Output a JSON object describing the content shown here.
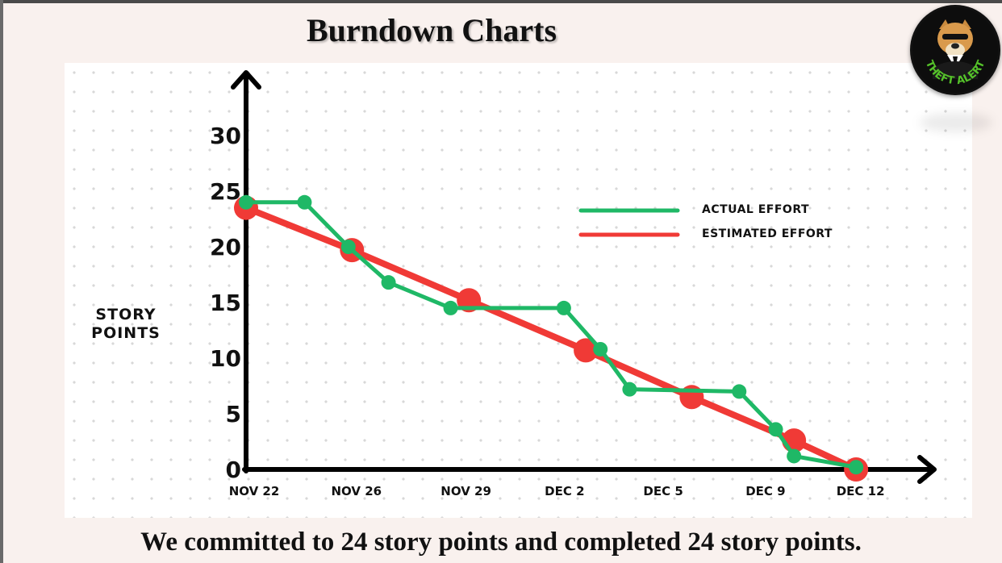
{
  "header": {
    "title": "Burndown Charts"
  },
  "footer": {
    "caption": "We committed to 24 story points and completed 24 story points."
  },
  "logo": {
    "text": "THEFT ALERT",
    "icon": "bulldog-icon"
  },
  "colors": {
    "actual": "#1fb866",
    "estimated": "#f03a36",
    "axis": "#000000"
  },
  "chart_data": {
    "type": "line",
    "title": "Burndown Charts",
    "xlabel": "",
    "ylabel": "STORY POINTS",
    "ylabel_lines": [
      "STORY",
      "POINTS"
    ],
    "ylim": [
      0,
      30
    ],
    "yticks": [
      0,
      5,
      10,
      15,
      20,
      25,
      30
    ],
    "x_ticks": [
      "NOV 22",
      "NOV 26",
      "NOV 29",
      "DEC 2",
      "DEC 5",
      "DEC 9",
      "DEC 12"
    ],
    "x_range": [
      0,
      18
    ],
    "x_tick_positions": [
      0,
      2.8,
      5.8,
      8.5,
      11.2,
      14,
      16.6
    ],
    "grid": false,
    "legend_position": "top-right",
    "series": [
      {
        "name": "ACTUAL EFFORT",
        "color": "#1fb866",
        "x": [
          0,
          1.6,
          2.8,
          3.9,
          5.6,
          8.7,
          9.7,
          10.5,
          13.5,
          14.5,
          15,
          16.7
        ],
        "values": [
          24,
          24,
          20,
          16.8,
          14.5,
          14.5,
          10.8,
          7.2,
          7,
          3.6,
          1.2,
          0.2
        ]
      },
      {
        "name": "ESTIMATED EFFORT",
        "color": "#f03a36",
        "x": [
          0,
          2.9,
          6.1,
          9.3,
          12.2,
          15,
          16.7
        ],
        "values": [
          23.5,
          19.7,
          15.2,
          10.7,
          6.5,
          2.6,
          0
        ]
      }
    ]
  }
}
